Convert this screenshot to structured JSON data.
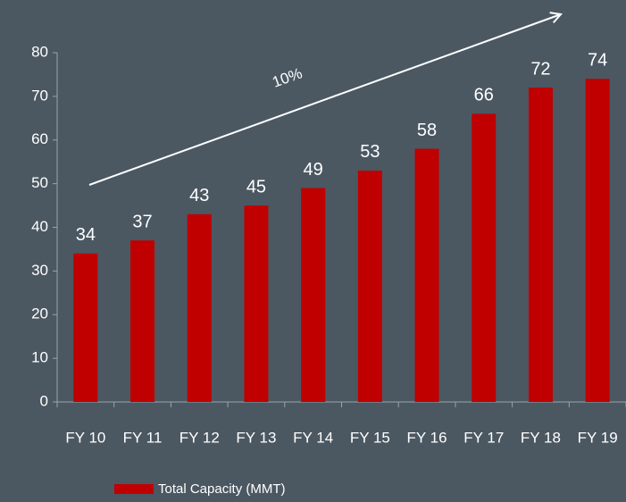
{
  "chart_data": {
    "type": "bar",
    "categories": [
      "FY 10",
      "FY 11",
      "FY 12",
      "FY 13",
      "FY 14",
      "FY 15",
      "FY 16",
      "FY 17",
      "FY 18",
      "FY 19"
    ],
    "series": [
      {
        "name": "Total Capacity  (MMT)",
        "color": "#c00000",
        "values": [
          34,
          37,
          43,
          45,
          49,
          53,
          58,
          66,
          72,
          74
        ]
      }
    ],
    "ylim": [
      0,
      80
    ],
    "yticks": [
      0,
      10,
      20,
      30,
      40,
      50,
      60,
      70,
      80
    ],
    "annotation": "10%",
    "legend": "bottom"
  }
}
